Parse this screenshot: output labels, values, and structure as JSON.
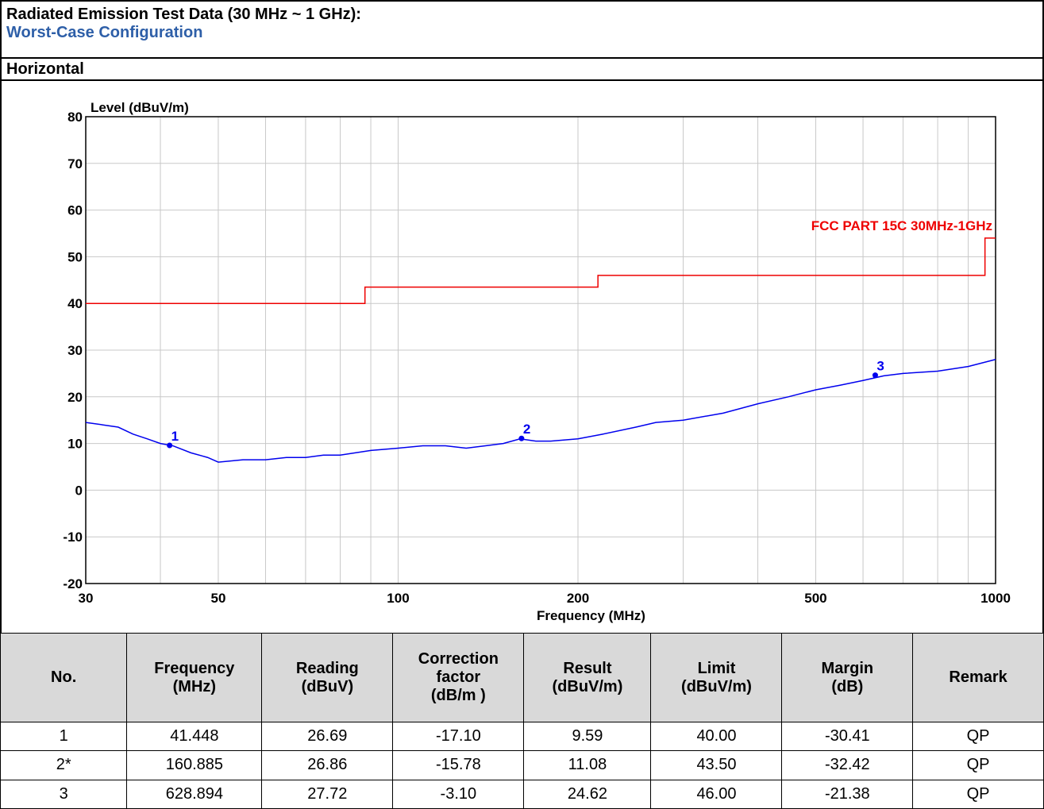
{
  "header": {
    "title": "Radiated Emission Test Data (30 MHz ~ 1 GHz):",
    "subtitle": "Worst-Case Configuration",
    "polarization": "Horizontal"
  },
  "chart_data": {
    "type": "line",
    "ylabel": "Level (dBuV/m)",
    "xlabel": "Frequency (MHz)",
    "xscale": "log",
    "grid": true,
    "xlim": [
      30,
      1000
    ],
    "ylim": [
      -20,
      80
    ],
    "xticks": [
      30,
      50,
      100,
      200,
      500,
      1000
    ],
    "xminor": [
      40,
      60,
      70,
      80,
      90,
      300,
      400,
      600,
      700,
      800,
      900
    ],
    "yticks": [
      -20,
      -10,
      0,
      10,
      20,
      30,
      40,
      50,
      60,
      70,
      80
    ],
    "series": [
      {
        "name": null,
        "color": "#0000ee",
        "x": [
          30,
          32,
          34,
          36,
          38,
          40,
          42,
          45,
          48,
          50,
          55,
          60,
          65,
          70,
          75,
          80,
          90,
          100,
          110,
          120,
          130,
          140,
          150,
          160,
          170,
          180,
          200,
          220,
          250,
          270,
          300,
          350,
          400,
          450,
          500,
          550,
          600,
          650,
          700,
          800,
          900,
          1000
        ],
        "values": [
          14.5,
          14,
          13.5,
          12,
          11,
          10,
          9.5,
          8,
          7,
          6,
          6.5,
          6.5,
          7,
          7,
          7.5,
          7.5,
          8.5,
          9,
          9.5,
          9.5,
          9,
          9.5,
          10,
          11,
          10.5,
          10.5,
          11,
          12,
          13.5,
          14.5,
          15,
          16.5,
          18.5,
          20,
          21.5,
          22.5,
          23.5,
          24.5,
          25,
          25.5,
          26.5,
          28
        ]
      },
      {
        "name": "FCC PART 15C 30MHz-1GHz",
        "color": "#ee0000",
        "x": [
          30,
          88,
          88,
          216,
          216,
          960,
          960,
          1000
        ],
        "values": [
          40,
          40,
          43.5,
          43.5,
          46,
          46,
          54,
          54
        ]
      }
    ],
    "markers": [
      {
        "label": "1",
        "x": 41.448,
        "y": 9.59
      },
      {
        "label": "2",
        "x": 160.885,
        "y": 11.08
      },
      {
        "label": "3",
        "x": 628.894,
        "y": 24.62
      }
    ]
  },
  "table": {
    "columns": [
      "No.",
      "Frequency\n(MHz)",
      "Reading\n(dBuV)",
      "Correction\nfactor\n(dB/m )",
      "Result\n(dBuV/m)",
      "Limit\n(dBuV/m)",
      "Margin\n(dB)",
      "Remark"
    ],
    "rows": [
      [
        "1",
        "41.448",
        "26.69",
        "-17.10",
        "9.59",
        "40.00",
        "-30.41",
        "QP"
      ],
      [
        "2*",
        "160.885",
        "26.86",
        "-15.78",
        "11.08",
        "43.50",
        "-32.42",
        "QP"
      ],
      [
        "3",
        "628.894",
        "27.72",
        "-3.10",
        "24.62",
        "46.00",
        "-21.38",
        "QP"
      ]
    ]
  }
}
